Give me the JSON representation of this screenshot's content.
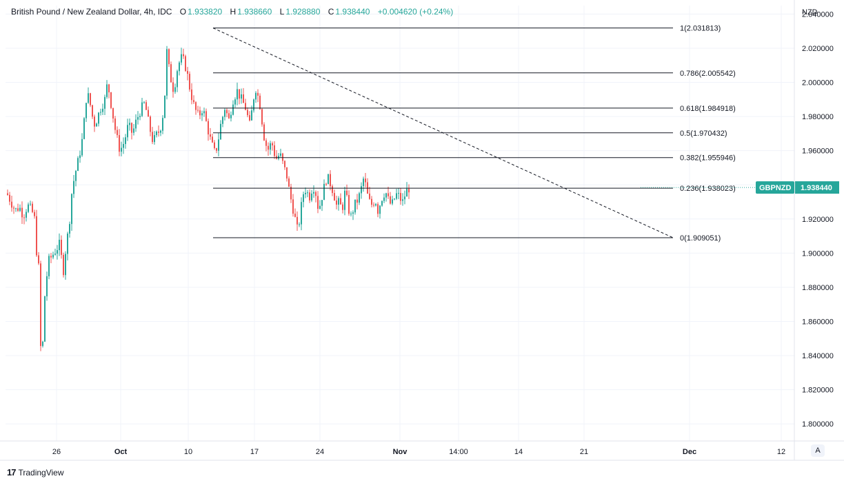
{
  "header": {
    "title": "British Pound / New Zealand Dollar, 4h, IDC",
    "open_label": "O",
    "open": "1.933820",
    "high_label": "H",
    "high": "1.938660",
    "low_label": "L",
    "low": "1.928880",
    "close_label": "C",
    "close": "1.938440",
    "change": "+0.004620 (+0.24%)"
  },
  "footer": {
    "brand": "TradingView",
    "logo_glyph": "17"
  },
  "controls": {
    "auto_scale": "A"
  },
  "colors": {
    "up": "#26a69a",
    "down": "#ef5350",
    "grid": "#f0f3fa",
    "line": "#131722"
  },
  "chart_data": {
    "type": "candlestick",
    "symbol": "GBPNZD",
    "currency": "NZD",
    "last_price": "1.938440",
    "timeframe": "4h",
    "ylim": [
      1.79,
      2.045
    ],
    "y_ticks": [
      "2.040000",
      "2.020000",
      "2.000000",
      "1.980000",
      "1.960000",
      "1.940000",
      "1.920000",
      "1.900000",
      "1.880000",
      "1.860000",
      "1.840000",
      "1.820000",
      "1.800000"
    ],
    "x_ticks": [
      "26",
      "Oct",
      "10",
      "17",
      "24",
      "Nov",
      "14:00",
      "14",
      "21",
      "Dec",
      "12"
    ],
    "x_ticks_bold": [
      "Oct",
      "Nov",
      "Dec"
    ],
    "close_path": [
      [
        1.935,
        0
      ],
      [
        1.93,
        6
      ],
      [
        1.925,
        12
      ],
      [
        1.927,
        18
      ],
      [
        1.922,
        24
      ],
      [
        1.928,
        30
      ],
      [
        1.925,
        36
      ],
      [
        1.92,
        40
      ],
      [
        1.895,
        44
      ],
      [
        1.89,
        47
      ],
      [
        1.845,
        49
      ],
      [
        1.838,
        51
      ],
      [
        1.875,
        55
      ],
      [
        1.895,
        60
      ],
      [
        1.9,
        68
      ],
      [
        1.905,
        76
      ],
      [
        1.89,
        82
      ],
      [
        1.905,
        86
      ],
      [
        1.915,
        90
      ],
      [
        1.935,
        94
      ],
      [
        1.945,
        98
      ],
      [
        1.955,
        104
      ],
      [
        1.968,
        110
      ],
      [
        1.995,
        116
      ],
      [
        1.985,
        122
      ],
      [
        1.975,
        126
      ],
      [
        1.978,
        130
      ],
      [
        1.985,
        136
      ],
      [
        1.99,
        142
      ],
      [
        2.0,
        146
      ],
      [
        1.985,
        152
      ],
      [
        1.97,
        158
      ],
      [
        1.96,
        164
      ],
      [
        1.965,
        170
      ],
      [
        1.975,
        176
      ],
      [
        1.97,
        182
      ],
      [
        1.978,
        188
      ],
      [
        1.984,
        194
      ],
      [
        1.988,
        200
      ],
      [
        1.975,
        206
      ],
      [
        1.965,
        212
      ],
      [
        1.97,
        218
      ],
      [
        1.972,
        222
      ],
      [
        1.985,
        228
      ],
      [
        2.018,
        232
      ],
      [
        2.005,
        236
      ],
      [
        1.995,
        242
      ],
      [
        2.01,
        248
      ],
      [
        2.015,
        254
      ],
      [
        2.008,
        260
      ],
      [
        1.995,
        266
      ],
      [
        1.985,
        272
      ],
      [
        1.98,
        278
      ],
      [
        1.985,
        284
      ],
      [
        1.975,
        290
      ],
      [
        1.965,
        296
      ],
      [
        1.958,
        302
      ],
      [
        1.965,
        306
      ],
      [
        1.975,
        310
      ],
      [
        1.985,
        316
      ],
      [
        1.978,
        322
      ],
      [
        1.99,
        328
      ],
      [
        1.995,
        334
      ],
      [
        1.99,
        340
      ],
      [
        1.985,
        346
      ],
      [
        1.975,
        352
      ],
      [
        1.985,
        356
      ],
      [
        1.998,
        360
      ],
      [
        1.992,
        364
      ],
      [
        1.985,
        368
      ],
      [
        1.97,
        372
      ],
      [
        1.96,
        378
      ],
      [
        1.965,
        384
      ],
      [
        1.955,
        390
      ],
      [
        1.958,
        396
      ],
      [
        1.95,
        402
      ],
      [
        1.945,
        406
      ],
      [
        1.935,
        410
      ],
      [
        1.928,
        414
      ],
      [
        1.92,
        418
      ],
      [
        1.912,
        422
      ],
      [
        1.925,
        426
      ],
      [
        1.935,
        430
      ],
      [
        1.938,
        434
      ],
      [
        1.932,
        438
      ],
      [
        1.94,
        444
      ],
      [
        1.935,
        448
      ],
      [
        1.925,
        452
      ],
      [
        1.935,
        458
      ],
      [
        1.945,
        464
      ],
      [
        1.94,
        470
      ],
      [
        1.935,
        474
      ],
      [
        1.928,
        478
      ],
      [
        1.93,
        482
      ],
      [
        1.925,
        486
      ],
      [
        1.935,
        490
      ],
      [
        1.93,
        494
      ],
      [
        1.92,
        498
      ],
      [
        1.928,
        504
      ],
      [
        1.932,
        510
      ],
      [
        1.938,
        514
      ],
      [
        1.945,
        518
      ],
      [
        1.935,
        522
      ],
      [
        1.93,
        526
      ],
      [
        1.928,
        530
      ],
      [
        1.932,
        534
      ],
      [
        1.925,
        538
      ],
      [
        1.93,
        542
      ],
      [
        1.935,
        546
      ],
      [
        1.935,
        550
      ],
      [
        1.93,
        554
      ],
      [
        1.928,
        558
      ],
      [
        1.932,
        562
      ],
      [
        1.935,
        566
      ],
      [
        1.932,
        570
      ],
      [
        1.93,
        574
      ],
      [
        1.935,
        578
      ],
      [
        1.938,
        582
      ],
      [
        1.938,
        584
      ]
    ],
    "fibonacci": {
      "levels": [
        {
          "label": "1(2.031813)",
          "value": 2.031813
        },
        {
          "label": "0.786(2.005542)",
          "value": 2.005542
        },
        {
          "label": "0.618(1.984918)",
          "value": 1.984918
        },
        {
          "label": "0.5(1.970432)",
          "value": 1.970432
        },
        {
          "label": "0.382(1.955946)",
          "value": 1.955946
        },
        {
          "label": "0.236(1.938023)",
          "value": 1.938023
        },
        {
          "label": "0(1.909051)",
          "value": 1.909051
        }
      ]
    },
    "trendline": {
      "start": 2.031813,
      "end": 1.909051,
      "style": "dashed"
    }
  }
}
